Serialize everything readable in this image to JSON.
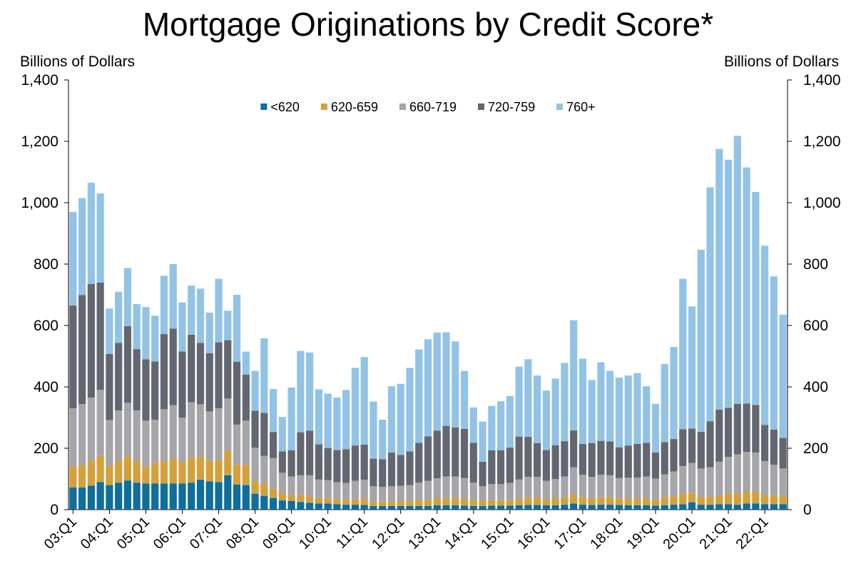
{
  "chart_data": {
    "type": "stacked_bar",
    "title": "Mortgage Originations by Credit Score*",
    "y_axis_label": "Billions of Dollars",
    "y2_axis_label": "Billions of Dollars",
    "categories": [
      "03:Q1",
      null,
      null,
      null,
      "04:Q1",
      null,
      null,
      null,
      "05:Q1",
      null,
      null,
      null,
      "06:Q1",
      null,
      null,
      null,
      "07:Q1",
      null,
      null,
      null,
      "08:Q1",
      null,
      null,
      null,
      "09:Q1",
      null,
      null,
      null,
      "10:Q1",
      null,
      null,
      null,
      "11:Q1",
      null,
      null,
      null,
      "12:Q1",
      null,
      null,
      null,
      "13:Q1",
      null,
      null,
      null,
      "14:Q1",
      null,
      null,
      null,
      "15:Q1",
      null,
      null,
      null,
      "16:Q1",
      null,
      null,
      null,
      "17:Q1",
      null,
      null,
      null,
      "18:Q1",
      null,
      null,
      null,
      "19:Q1",
      null,
      null,
      null,
      "20:Q1",
      null,
      null,
      null,
      "21:Q1",
      null,
      null,
      null,
      "22:Q1",
      null,
      null
    ],
    "series": [
      {
        "name": "<620",
        "color": "#0e6e9c",
        "values": [
          72,
          72,
          78,
          90,
          80,
          88,
          95,
          88,
          85,
          85,
          85,
          85,
          85,
          88,
          98,
          92,
          90,
          112,
          82,
          80,
          52,
          45,
          38,
          30,
          28,
          25,
          22,
          20,
          20,
          18,
          16,
          16,
          15,
          12,
          12,
          12,
          12,
          12,
          12,
          12,
          14,
          14,
          14,
          13,
          12,
          12,
          13,
          13,
          13,
          14,
          15,
          15,
          14,
          14,
          16,
          20,
          16,
          15,
          16,
          16,
          15,
          14,
          14,
          14,
          13,
          14,
          16,
          18,
          24,
          16,
          16,
          18,
          18,
          16,
          20,
          20,
          18,
          18,
          18
        ]
      },
      {
        "name": "620-659",
        "color": "#d4a03c",
        "values": [
          68,
          72,
          82,
          85,
          62,
          70,
          78,
          70,
          55,
          68,
          72,
          80,
          70,
          82,
          75,
          68,
          70,
          80,
          65,
          65,
          40,
          40,
          30,
          22,
          20,
          22,
          20,
          18,
          18,
          16,
          16,
          18,
          20,
          14,
          14,
          14,
          16,
          16,
          18,
          20,
          22,
          24,
          24,
          22,
          18,
          16,
          18,
          18,
          18,
          22,
          24,
          24,
          20,
          22,
          24,
          30,
          24,
          22,
          24,
          24,
          22,
          22,
          22,
          22,
          20,
          26,
          28,
          34,
          30,
          26,
          26,
          28,
          34,
          36,
          38,
          38,
          30,
          28,
          28
        ]
      },
      {
        "name": "660-719",
        "color": "#a5a5aa",
        "values": [
          190,
          200,
          205,
          215,
          150,
          165,
          175,
          165,
          150,
          140,
          170,
          175,
          145,
          180,
          170,
          160,
          170,
          170,
          130,
          145,
          110,
          90,
          100,
          68,
          60,
          65,
          70,
          60,
          58,
          55,
          55,
          60,
          62,
          50,
          48,
          50,
          50,
          52,
          58,
          62,
          66,
          70,
          70,
          68,
          58,
          48,
          52,
          52,
          56,
          62,
          68,
          68,
          60,
          64,
          68,
          88,
          74,
          70,
          74,
          72,
          66,
          68,
          68,
          72,
          68,
          75,
          80,
          90,
          98,
          92,
          96,
          110,
          120,
          128,
          130,
          128,
          110,
          100,
          88
        ]
      },
      {
        "name": "720-759",
        "color": "#626771",
        "values": [
          335,
          355,
          370,
          350,
          215,
          220,
          250,
          200,
          200,
          190,
          245,
          250,
          215,
          220,
          200,
          190,
          215,
          190,
          205,
          150,
          120,
          140,
          85,
          70,
          85,
          140,
          145,
          115,
          105,
          105,
          110,
          115,
          115,
          90,
          90,
          110,
          100,
          110,
          130,
          145,
          155,
          165,
          160,
          160,
          130,
          80,
          110,
          110,
          115,
          140,
          130,
          110,
          100,
          110,
          115,
          120,
          100,
          110,
          110,
          110,
          100,
          105,
          110,
          110,
          85,
          105,
          106,
          120,
          112,
          120,
          150,
          170,
          160,
          165,
          158,
          155,
          118,
          115,
          100
        ]
      },
      {
        "name": "760+",
        "color": "#92c3e6",
        "values": [
          305,
          316,
          330,
          290,
          148,
          167,
          189,
          147,
          170,
          149,
          190,
          210,
          160,
          160,
          177,
          132,
          207,
          96,
          218,
          75,
          130,
          243,
          140,
          112,
          205,
          265,
          255,
          179,
          177,
          171,
          193,
          253,
          285,
          186,
          129,
          216,
          232,
          272,
          304,
          316,
          320,
          305,
          280,
          189,
          115,
          131,
          145,
          160,
          168,
          228,
          253,
          220,
          194,
          217,
          255,
          359,
          278,
          205,
          256,
          230,
          227,
          228,
          231,
          184,
          159,
          255,
          300,
          490,
          398,
          593,
          762,
          849,
          808,
          873,
          769,
          694,
          584,
          499,
          401
        ]
      }
    ],
    "ylim": [
      0,
      1400
    ],
    "yticks": [
      0,
      200,
      400,
      600,
      800,
      {
        "value": 1000,
        "label": "1,000"
      },
      {
        "value": 1200,
        "label": "1,200"
      },
      {
        "value": 1400,
        "label": "1,400"
      }
    ],
    "y2lim": [
      0,
      1400
    ],
    "y2ticks": [
      0,
      200,
      400,
      600,
      800,
      {
        "value": 1000,
        "label": "1,000"
      },
      {
        "value": 1200,
        "label": "1,200"
      },
      {
        "value": 1400,
        "label": "1,400"
      }
    ],
    "legend": "top"
  }
}
